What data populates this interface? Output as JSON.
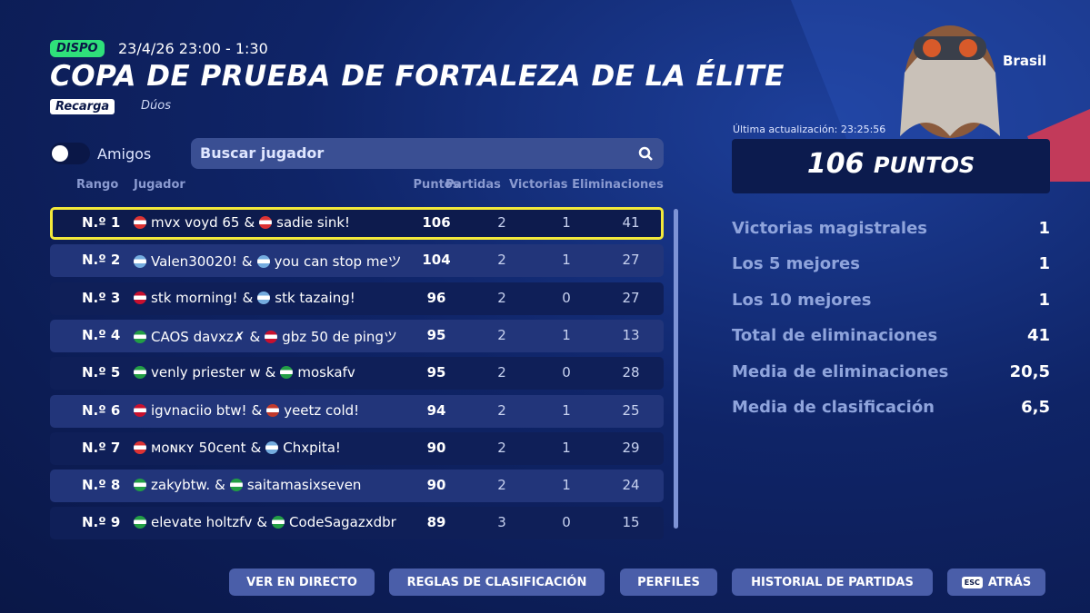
{
  "header": {
    "badge": "DISPO",
    "datetime": "23/4/26 23:00 - 1:30",
    "title": "COPA DE PRUEBA DE FORTALEZA DE LA ÉLITE",
    "mode_tag": "Recarga",
    "team_size": "Dúos"
  },
  "filters": {
    "toggle_label": "Amigos",
    "search_placeholder": "Buscar jugador"
  },
  "table": {
    "columns": [
      "Rango",
      "Jugador",
      "Puntos",
      "Partidas",
      "Victorias",
      "Eliminaciones"
    ],
    "joiner": "&",
    "rows": [
      [
        "N.º 1",
        "mvx voyd 65",
        "sadie sink!",
        "106",
        "2",
        "1",
        "41"
      ],
      [
        "N.º 2",
        "Valen30020!",
        "you can stop meツ",
        "104",
        "2",
        "1",
        "27"
      ],
      [
        "N.º 3",
        "stk morning!",
        "stk tazaing!",
        "96",
        "2",
        "0",
        "27"
      ],
      [
        "N.º 4",
        "CAOS davxz✗",
        "gbz 50 de pingツ",
        "95",
        "2",
        "1",
        "13"
      ],
      [
        "N.º 5",
        "venly priester w",
        "moskafv",
        "95",
        "2",
        "0",
        "28"
      ],
      [
        "N.º 6",
        "igvnaciio btw!",
        "yeetz cold!",
        "94",
        "2",
        "1",
        "25"
      ],
      [
        "N.º 7",
        "ᴍᴏɴᴋʏ 50cent",
        "Chxpita!",
        "90",
        "2",
        "1",
        "29"
      ],
      [
        "N.º 8",
        "zakybtw.",
        "saitamasixseven",
        "90",
        "2",
        "1",
        "24"
      ],
      [
        "N.º 9",
        "elevate holtzfv",
        "CodeSagazxdbr",
        "89",
        "3",
        "0",
        "15"
      ]
    ]
  },
  "summary": {
    "region": "Brasil",
    "last_update": "Última actualización: 23:25:56",
    "points": "106",
    "points_unit": "PUNTOS",
    "stats": [
      [
        "Victorias magistrales",
        "1"
      ],
      [
        "Los 5 mejores",
        "1"
      ],
      [
        "Los 10 mejores",
        "1"
      ],
      [
        "Total de eliminaciones",
        "41"
      ],
      [
        "Media de eliminaciones",
        "20,5"
      ],
      [
        "Media de clasificación",
        "6,5"
      ]
    ]
  },
  "buttons": [
    "VER EN DIRECTO",
    "REGLAS DE CLASIFICACIÓN",
    "PERFILES",
    "HISTORIAL DE PARTIDAS",
    "ATRÁS"
  ],
  "esc_key": "ESC"
}
